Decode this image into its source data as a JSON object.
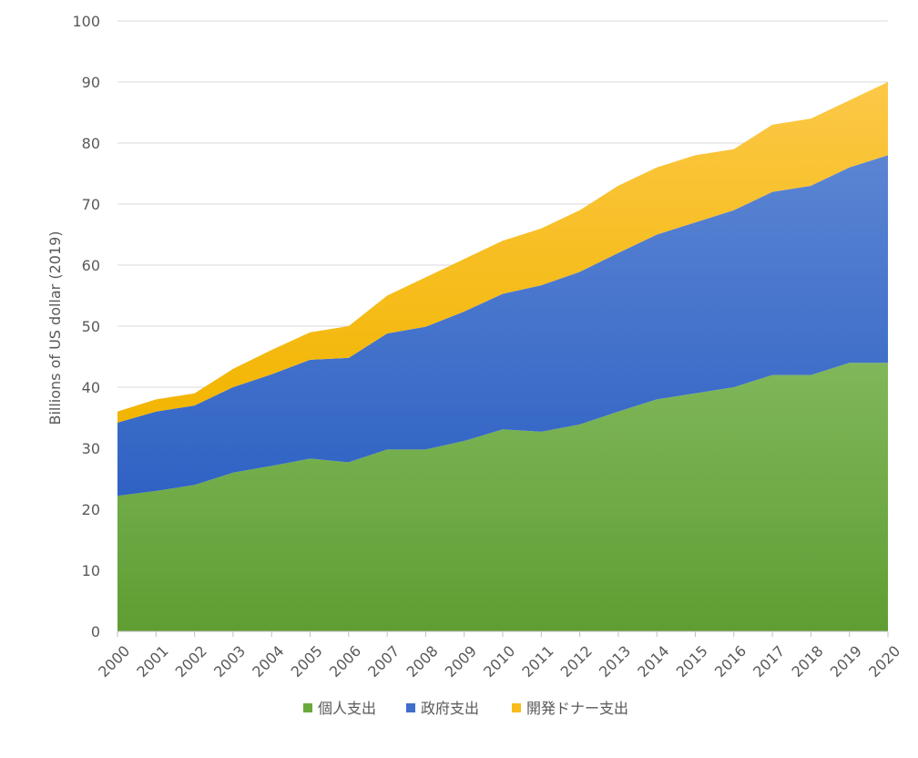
{
  "chart_data": {
    "type": "area",
    "stacked": true,
    "x": [
      "2000",
      "2001",
      "2002",
      "2003",
      "2004",
      "2005",
      "2006",
      "2007",
      "2008",
      "2009",
      "2010",
      "2011",
      "2012",
      "2013",
      "2014",
      "2015",
      "2016",
      "2017",
      "2018",
      "2019",
      "2020"
    ],
    "series": [
      {
        "name": "個人支出",
        "color": "#6aa93b",
        "values": [
          22.2,
          23,
          24,
          26,
          27.1,
          28.3,
          27.7,
          29.8,
          29.8,
          31.2,
          33.1,
          32.7,
          33.9,
          36,
          38,
          39,
          40,
          42,
          42,
          44,
          44
        ]
      },
      {
        "name": "政府支出",
        "color": "#3e6fcb",
        "values": [
          12,
          13,
          13,
          14,
          15,
          16.2,
          17.1,
          19,
          20.1,
          21.2,
          22.2,
          24,
          25,
          26,
          27,
          28,
          29,
          30,
          31,
          32,
          34
        ]
      },
      {
        "name": "開発ドナー支出",
        "color": "#f7bc1a",
        "values": [
          1.8,
          2,
          2,
          3,
          4,
          4.5,
          5.2,
          6.2,
          8.1,
          8.6,
          8.7,
          9.3,
          10.1,
          11,
          11,
          11,
          10,
          11,
          11,
          11,
          12
        ]
      }
    ],
    "ylabel": "Billions  of  US dollar (2019)",
    "xlabel": "",
    "ylim": [
      0,
      100
    ],
    "yticks": [
      "0",
      "10",
      "20",
      "30",
      "40",
      "50",
      "60",
      "70",
      "80",
      "90",
      "100"
    ],
    "grid": true,
    "legend": "bottom"
  }
}
